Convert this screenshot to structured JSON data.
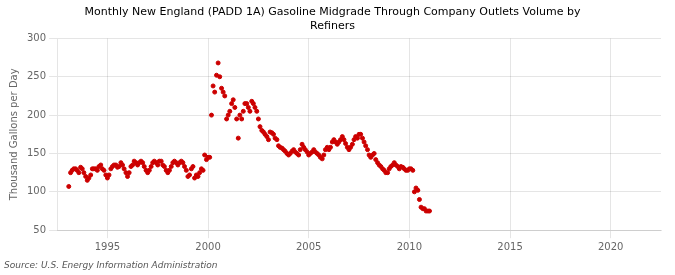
{
  "chart_data": {
    "type": "scatter",
    "title": "Monthly New England (PADD 1A) Gasoline Midgrade Through Company Outlets Volume by\nRefiners",
    "y_label": "Thousand Gallons per Day",
    "annotations": [
      "Source: U.S. Energy Information Administration"
    ],
    "color": "#cc0000",
    "grid": true,
    "xlim": [
      1992.5,
      2022.5
    ],
    "xticks": [
      1995,
      2000,
      2005,
      2010,
      2015,
      2020
    ],
    "ylim": [
      50,
      300
    ],
    "yticks": [
      50,
      100,
      150,
      200,
      250,
      300
    ],
    "x": [
      1993.08,
      1993.17,
      1993.25,
      1993.33,
      1993.42,
      1993.5,
      1993.58,
      1993.67,
      1993.75,
      1993.83,
      1993.92,
      1994.0,
      1994.08,
      1994.17,
      1994.25,
      1994.33,
      1994.42,
      1994.5,
      1994.58,
      1994.67,
      1994.75,
      1994.83,
      1994.92,
      1995.0,
      1995.08,
      1995.17,
      1995.25,
      1995.33,
      1995.42,
      1995.5,
      1995.58,
      1995.67,
      1995.75,
      1995.83,
      1995.92,
      1996.0,
      1996.08,
      1996.17,
      1996.25,
      1996.33,
      1996.42,
      1996.5,
      1996.58,
      1996.67,
      1996.75,
      1996.83,
      1996.92,
      1997.0,
      1997.08,
      1997.17,
      1997.25,
      1997.33,
      1997.42,
      1997.5,
      1997.58,
      1997.67,
      1997.75,
      1997.83,
      1997.92,
      1998.0,
      1998.08,
      1998.17,
      1998.25,
      1998.33,
      1998.42,
      1998.5,
      1998.58,
      1998.67,
      1998.75,
      1998.83,
      1998.92,
      1999.0,
      1999.08,
      1999.17,
      1999.25,
      1999.33,
      1999.42,
      1999.5,
      1999.58,
      1999.67,
      1999.75,
      1999.83,
      1999.92,
      2000.0,
      2000.08,
      2000.17,
      2000.25,
      2000.33,
      2000.42,
      2000.5,
      2000.58,
      2000.67,
      2000.75,
      2000.83,
      2000.92,
      2001.0,
      2001.08,
      2001.17,
      2001.25,
      2001.33,
      2001.42,
      2001.5,
      2001.58,
      2001.67,
      2001.75,
      2001.83,
      2001.92,
      2002.0,
      2002.08,
      2002.17,
      2002.25,
      2002.33,
      2002.42,
      2002.5,
      2002.58,
      2002.67,
      2002.75,
      2002.83,
      2002.92,
      2003.0,
      2003.08,
      2003.17,
      2003.25,
      2003.33,
      2003.42,
      2003.5,
      2003.58,
      2003.67,
      2003.75,
      2003.83,
      2003.92,
      2004.0,
      2004.08,
      2004.17,
      2004.25,
      2004.33,
      2004.42,
      2004.5,
      2004.58,
      2004.67,
      2004.75,
      2004.83,
      2004.92,
      2005.0,
      2005.08,
      2005.17,
      2005.25,
      2005.33,
      2005.42,
      2005.5,
      2005.58,
      2005.67,
      2005.75,
      2005.83,
      2005.92,
      2006.0,
      2006.08,
      2006.17,
      2006.25,
      2006.33,
      2006.42,
      2006.5,
      2006.58,
      2006.67,
      2006.75,
      2006.83,
      2006.92,
      2007.0,
      2007.08,
      2007.17,
      2007.25,
      2007.33,
      2007.42,
      2007.5,
      2007.58,
      2007.67,
      2007.75,
      2007.83,
      2007.92,
      2008.0,
      2008.08,
      2008.17,
      2008.25,
      2008.33,
      2008.42,
      2008.5,
      2008.58,
      2008.67,
      2008.75,
      2008.83,
      2008.92,
      2009.0,
      2009.08,
      2009.17,
      2009.25,
      2009.33,
      2009.42,
      2009.5,
      2009.58,
      2009.67,
      2009.75,
      2009.83,
      2009.92,
      2010.0,
      2010.08,
      2010.17,
      2010.25,
      2010.33,
      2010.42,
      2010.5,
      2010.58,
      2010.67,
      2010.75,
      2010.83,
      2010.92,
      2011.0
    ],
    "values": [
      107,
      125,
      128,
      130,
      130,
      128,
      125,
      132,
      130,
      125,
      120,
      115,
      118,
      122,
      130,
      130,
      130,
      128,
      133,
      135,
      130,
      128,
      122,
      118,
      122,
      130,
      133,
      135,
      135,
      132,
      133,
      138,
      135,
      130,
      125,
      120,
      125,
      133,
      135,
      140,
      138,
      135,
      138,
      140,
      138,
      133,
      128,
      125,
      128,
      133,
      138,
      140,
      138,
      135,
      140,
      140,
      135,
      133,
      128,
      125,
      128,
      133,
      138,
      140,
      138,
      135,
      138,
      140,
      138,
      133,
      128,
      120,
      122,
      130,
      133,
      118,
      122,
      120,
      125,
      130,
      128,
      148,
      142,
      145,
      145,
      200,
      238,
      230,
      252,
      268,
      250,
      235,
      230,
      225,
      195,
      200,
      205,
      215,
      220,
      210,
      195,
      170,
      200,
      195,
      205,
      215,
      215,
      210,
      205,
      218,
      215,
      210,
      205,
      195,
      185,
      180,
      178,
      175,
      172,
      168,
      178,
      177,
      175,
      170,
      168,
      160,
      158,
      157,
      155,
      153,
      150,
      148,
      150,
      153,
      155,
      152,
      150,
      148,
      155,
      162,
      158,
      155,
      152,
      148,
      150,
      152,
      155,
      152,
      150,
      148,
      145,
      143,
      148,
      155,
      158,
      155,
      158,
      165,
      168,
      165,
      162,
      165,
      168,
      172,
      168,
      163,
      158,
      155,
      158,
      162,
      168,
      172,
      170,
      175,
      175,
      170,
      165,
      160,
      155,
      148,
      145,
      148,
      150,
      142,
      138,
      135,
      133,
      130,
      128,
      125,
      125,
      130,
      133,
      135,
      138,
      135,
      133,
      130,
      133,
      132,
      130,
      128,
      128,
      130,
      130,
      128,
      100,
      105,
      102,
      90,
      80,
      78,
      78,
      75,
      75,
      75
    ]
  }
}
